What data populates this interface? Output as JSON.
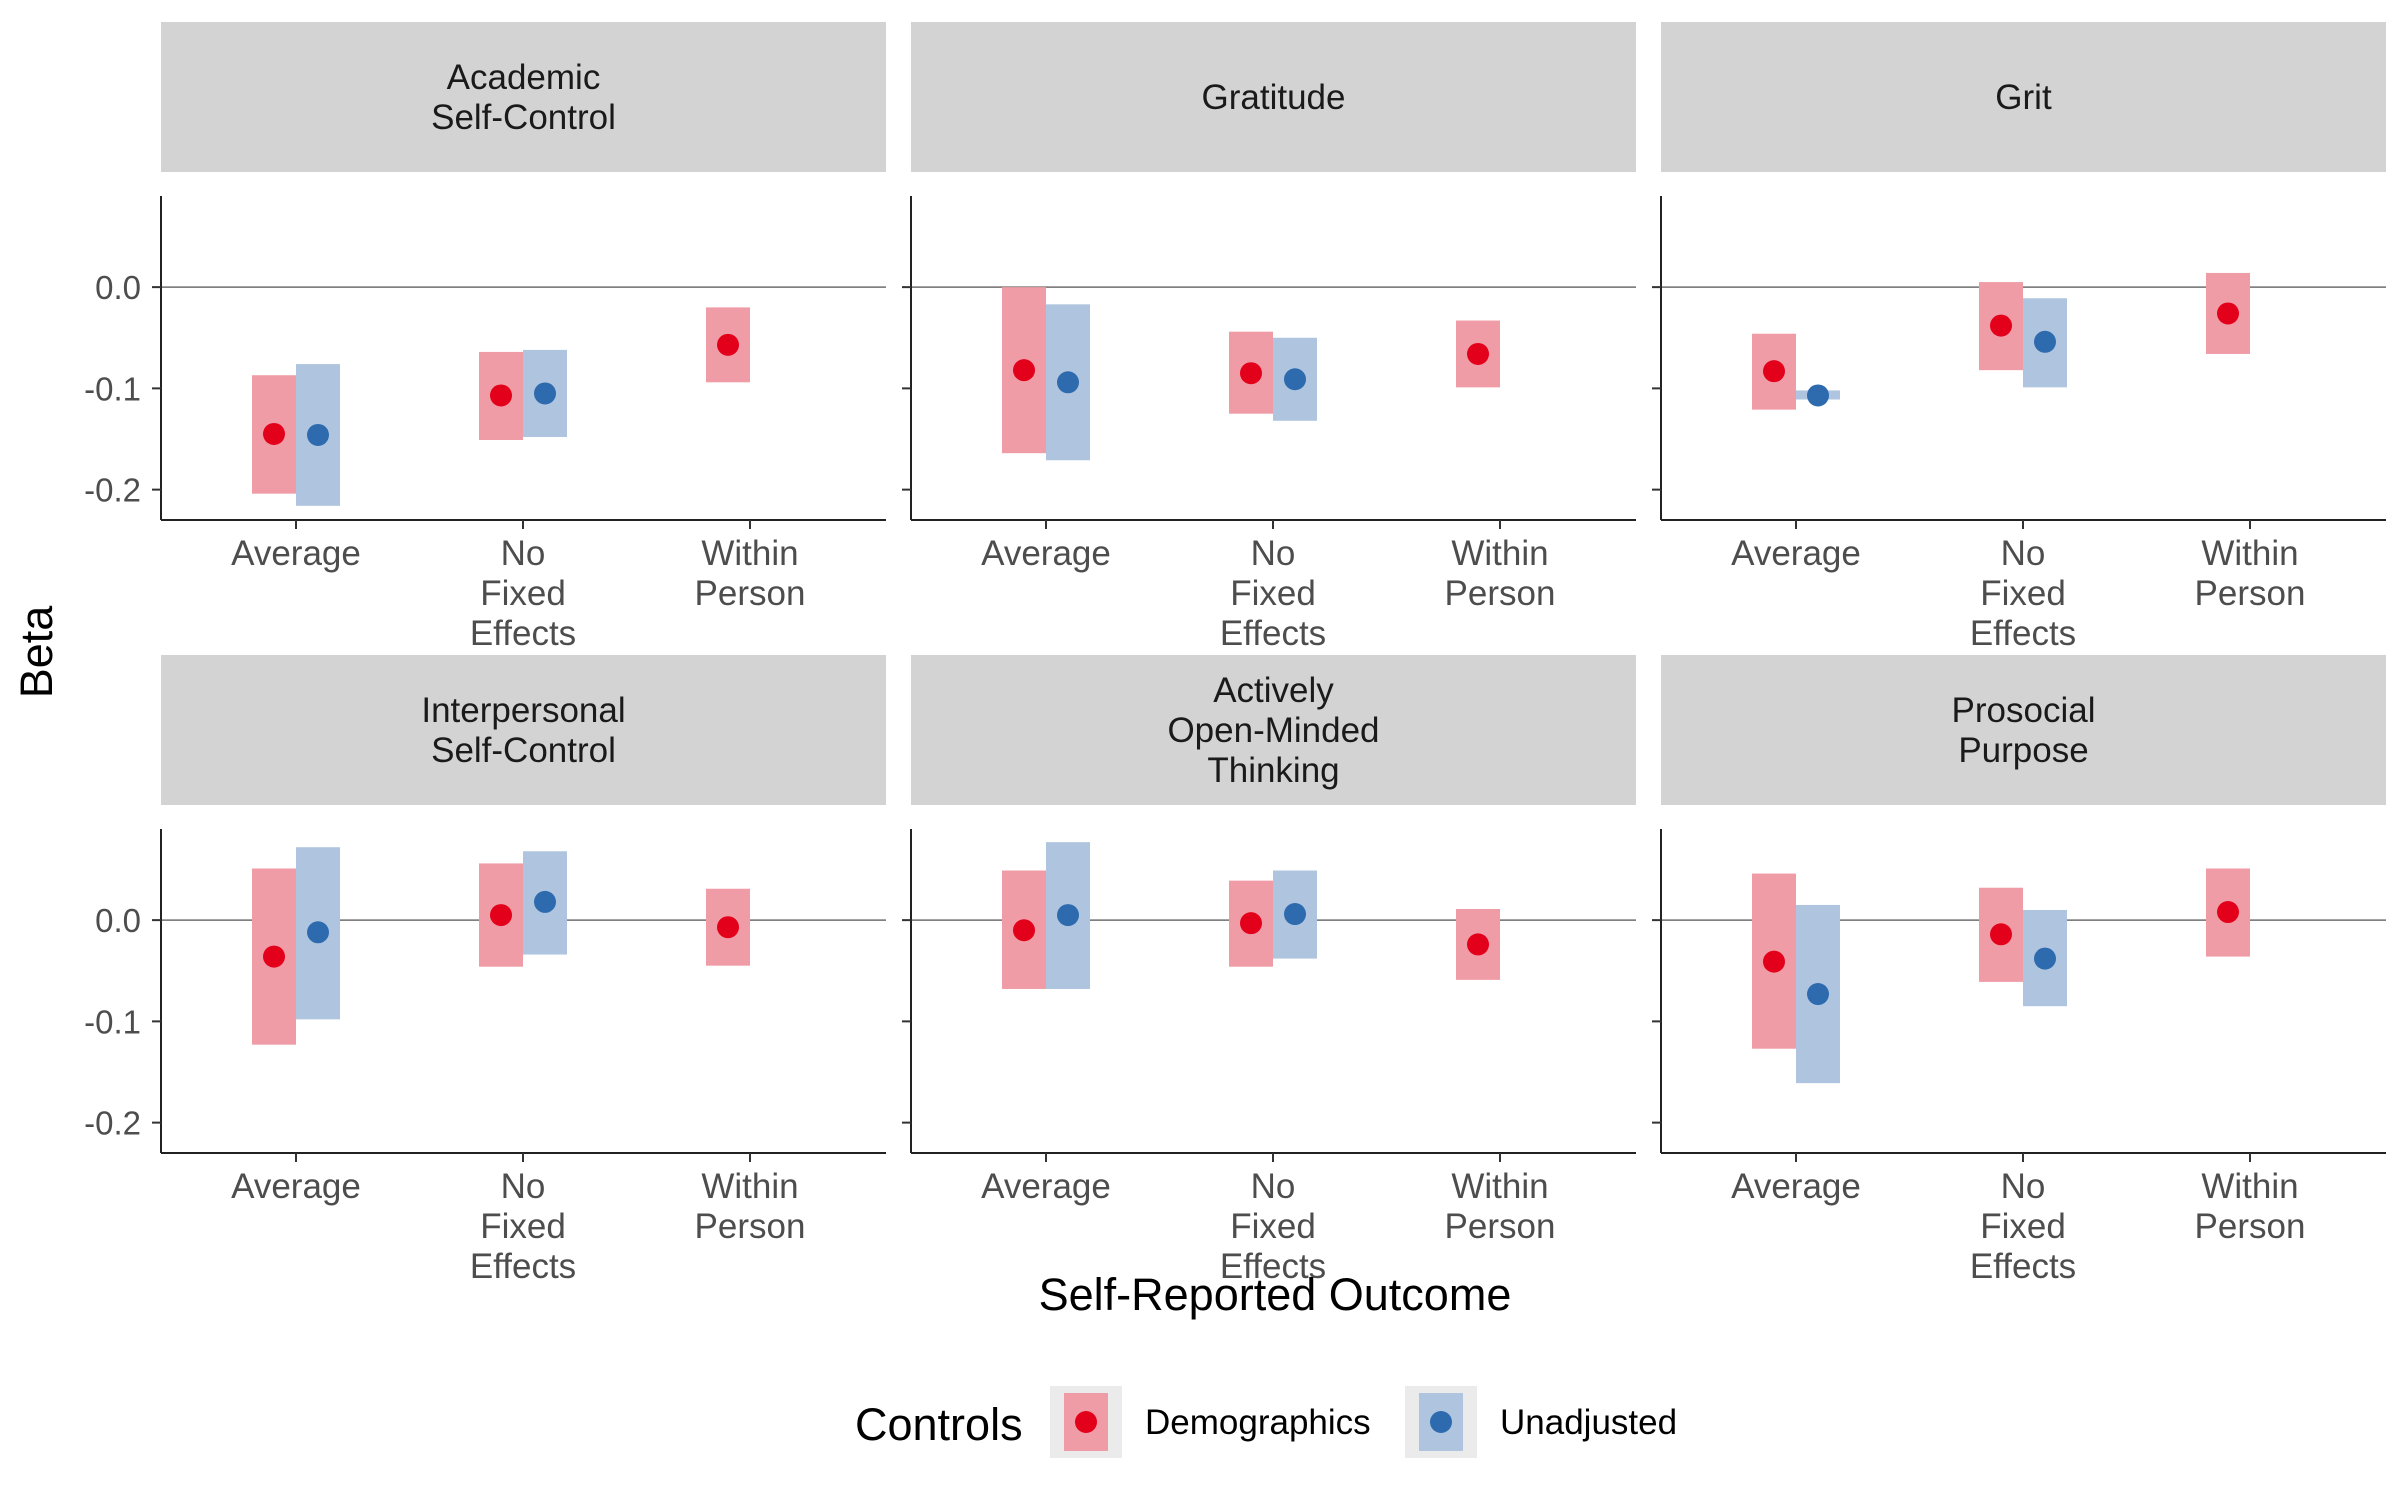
{
  "chart_data": {
    "type": "faceted_dot_interval",
    "xlabel": "Self-Reported Outcome",
    "ylabel": "Beta",
    "ylim": [
      -0.23,
      0.09
    ],
    "yticks": [
      0.0,
      -0.1,
      -0.2
    ],
    "ytick_labels": [
      "0.0",
      "-0.1",
      "-0.2"
    ],
    "reference_line": 0,
    "categories": [
      [
        "Average"
      ],
      [
        "No",
        "Fixed",
        "Effects"
      ],
      [
        "Within",
        "Person"
      ]
    ],
    "legend": {
      "title": "Controls",
      "position": "bottom",
      "items": [
        {
          "name": "Demographics",
          "point_color": "#E3001B",
          "band_color": "#F09CA6"
        },
        {
          "name": "Unadjusted",
          "point_color": "#2E6AAE",
          "band_color": "#AFC5DF"
        }
      ]
    },
    "panels": [
      {
        "title": [
          "Academic",
          "Self-Control"
        ],
        "series": [
          {
            "name": "Demographics",
            "points": [
              {
                "category": 0,
                "estimate": -0.145,
                "lower": -0.204,
                "upper": -0.087
              },
              {
                "category": 1,
                "estimate": -0.107,
                "lower": -0.151,
                "upper": -0.064
              },
              {
                "category": 2,
                "estimate": -0.057,
                "lower": -0.094,
                "upper": -0.02
              }
            ]
          },
          {
            "name": "Unadjusted",
            "points": [
              {
                "category": 0,
                "estimate": -0.146,
                "lower": -0.216,
                "upper": -0.076
              },
              {
                "category": 1,
                "estimate": -0.105,
                "lower": -0.148,
                "upper": -0.062
              }
            ]
          }
        ]
      },
      {
        "title": [
          "Gratitude"
        ],
        "series": [
          {
            "name": "Demographics",
            "points": [
              {
                "category": 0,
                "estimate": -0.082,
                "lower": -0.164,
                "upper": 0.0
              },
              {
                "category": 1,
                "estimate": -0.085,
                "lower": -0.125,
                "upper": -0.044
              },
              {
                "category": 2,
                "estimate": -0.066,
                "lower": -0.099,
                "upper": -0.033
              }
            ]
          },
          {
            "name": "Unadjusted",
            "points": [
              {
                "category": 0,
                "estimate": -0.094,
                "lower": -0.171,
                "upper": -0.017
              },
              {
                "category": 1,
                "estimate": -0.091,
                "lower": -0.132,
                "upper": -0.05
              }
            ]
          }
        ]
      },
      {
        "title": [
          "Grit"
        ],
        "series": [
          {
            "name": "Demographics",
            "points": [
              {
                "category": 0,
                "estimate": -0.083,
                "lower": -0.121,
                "upper": -0.046
              },
              {
                "category": 1,
                "estimate": -0.038,
                "lower": -0.082,
                "upper": 0.005
              },
              {
                "category": 2,
                "estimate": -0.026,
                "lower": -0.066,
                "upper": 0.014
              }
            ]
          },
          {
            "name": "Unadjusted",
            "points": [
              {
                "category": 0,
                "estimate": -0.107,
                "lower": -0.111,
                "upper": -0.102
              },
              {
                "category": 1,
                "estimate": -0.054,
                "lower": -0.099,
                "upper": -0.011
              }
            ]
          }
        ]
      },
      {
        "title": [
          "Interpersonal",
          "Self-Control"
        ],
        "series": [
          {
            "name": "Demographics",
            "points": [
              {
                "category": 0,
                "estimate": -0.036,
                "lower": -0.123,
                "upper": 0.051
              },
              {
                "category": 1,
                "estimate": 0.005,
                "lower": -0.046,
                "upper": 0.056
              },
              {
                "category": 2,
                "estimate": -0.007,
                "lower": -0.045,
                "upper": 0.031
              }
            ]
          },
          {
            "name": "Unadjusted",
            "points": [
              {
                "category": 0,
                "estimate": -0.012,
                "lower": -0.098,
                "upper": 0.072
              },
              {
                "category": 1,
                "estimate": 0.018,
                "lower": -0.034,
                "upper": 0.068
              }
            ]
          }
        ]
      },
      {
        "title": [
          "Actively",
          "Open-Minded",
          "Thinking"
        ],
        "series": [
          {
            "name": "Demographics",
            "points": [
              {
                "category": 0,
                "estimate": -0.01,
                "lower": -0.068,
                "upper": 0.049
              },
              {
                "category": 1,
                "estimate": -0.003,
                "lower": -0.046,
                "upper": 0.039
              },
              {
                "category": 2,
                "estimate": -0.024,
                "lower": -0.059,
                "upper": 0.011
              }
            ]
          },
          {
            "name": "Unadjusted",
            "points": [
              {
                "category": 0,
                "estimate": 0.005,
                "lower": -0.068,
                "upper": 0.077
              },
              {
                "category": 1,
                "estimate": 0.006,
                "lower": -0.038,
                "upper": 0.049
              }
            ]
          }
        ]
      },
      {
        "title": [
          "Prosocial",
          "Purpose"
        ],
        "series": [
          {
            "name": "Demographics",
            "points": [
              {
                "category": 0,
                "estimate": -0.041,
                "lower": -0.127,
                "upper": 0.046
              },
              {
                "category": 1,
                "estimate": -0.014,
                "lower": -0.061,
                "upper": 0.032
              },
              {
                "category": 2,
                "estimate": 0.008,
                "lower": -0.036,
                "upper": 0.051
              }
            ]
          },
          {
            "name": "Unadjusted",
            "points": [
              {
                "category": 0,
                "estimate": -0.073,
                "lower": -0.161,
                "upper": 0.015
              },
              {
                "category": 1,
                "estimate": -0.038,
                "lower": -0.085,
                "upper": 0.01
              }
            ]
          }
        ]
      }
    ]
  }
}
